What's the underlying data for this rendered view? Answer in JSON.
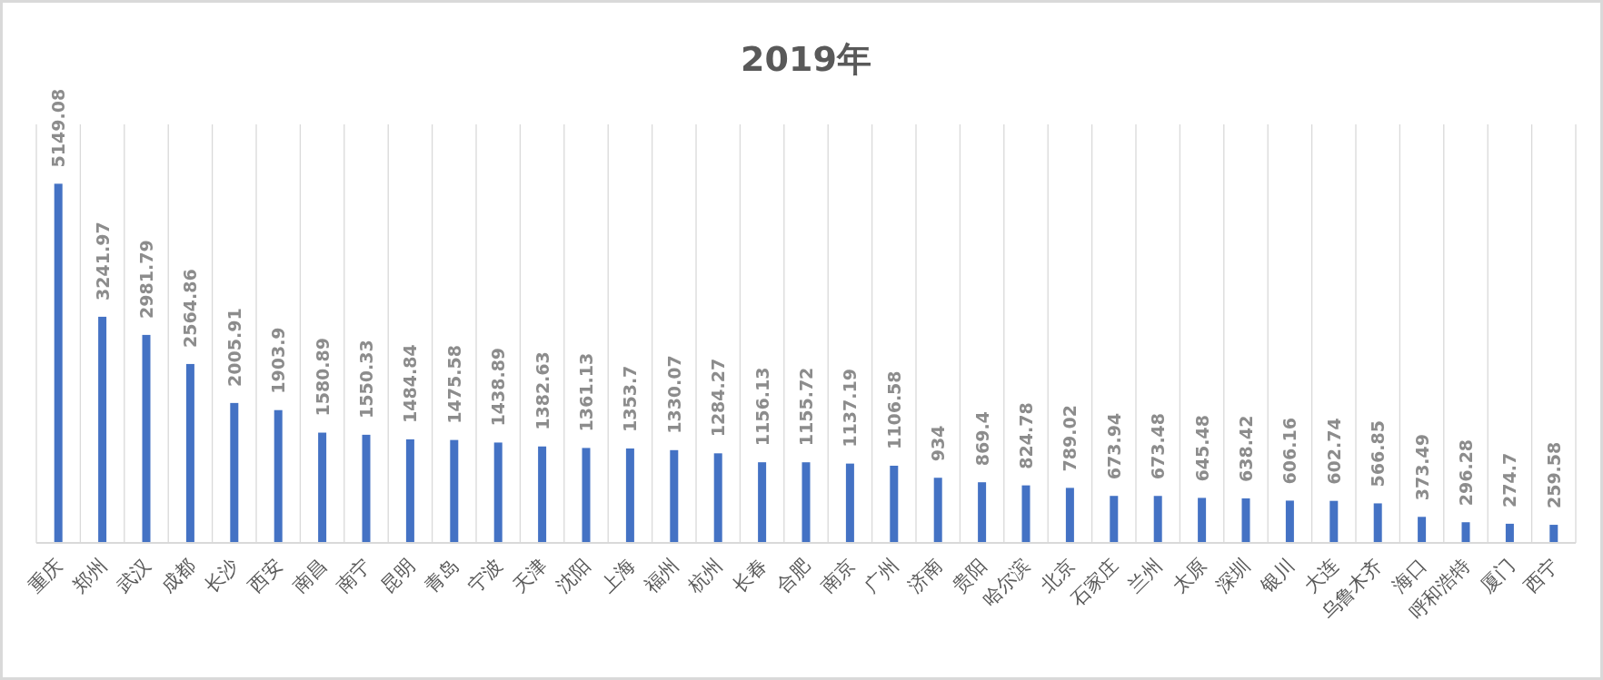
{
  "chart_data": {
    "type": "bar",
    "title": "2019年",
    "categories": [
      "重庆",
      "郑州",
      "武汉",
      "成都",
      "长沙",
      "西安",
      "南昌",
      "南宁",
      "昆明",
      "青岛",
      "宁波",
      "天津",
      "沈阳",
      "上海",
      "福州",
      "杭州",
      "长春",
      "合肥",
      "南京",
      "广州",
      "济南",
      "贵阳",
      "哈尔滨",
      "北京",
      "石家庄",
      "兰州",
      "太原",
      "深圳",
      "银川",
      "大连",
      "乌鲁木齐",
      "海口",
      "呼和浩特",
      "厦门",
      "西宁"
    ],
    "values": [
      5149.08,
      3241.97,
      2981.79,
      2564.86,
      2005.91,
      1903.9,
      1580.89,
      1550.33,
      1484.84,
      1475.58,
      1438.89,
      1382.63,
      1361.13,
      1353.7,
      1330.07,
      1284.27,
      1156.13,
      1155.72,
      1137.19,
      1106.58,
      934,
      869.4,
      824.78,
      789.02,
      673.94,
      673.48,
      645.48,
      638.42,
      606.16,
      602.74,
      566.85,
      373.49,
      296.28,
      274.7,
      259.58
    ],
    "color": "#4472c4",
    "ylim": [
      0,
      6000
    ],
    "grid": "x",
    "data_labels": true
  }
}
